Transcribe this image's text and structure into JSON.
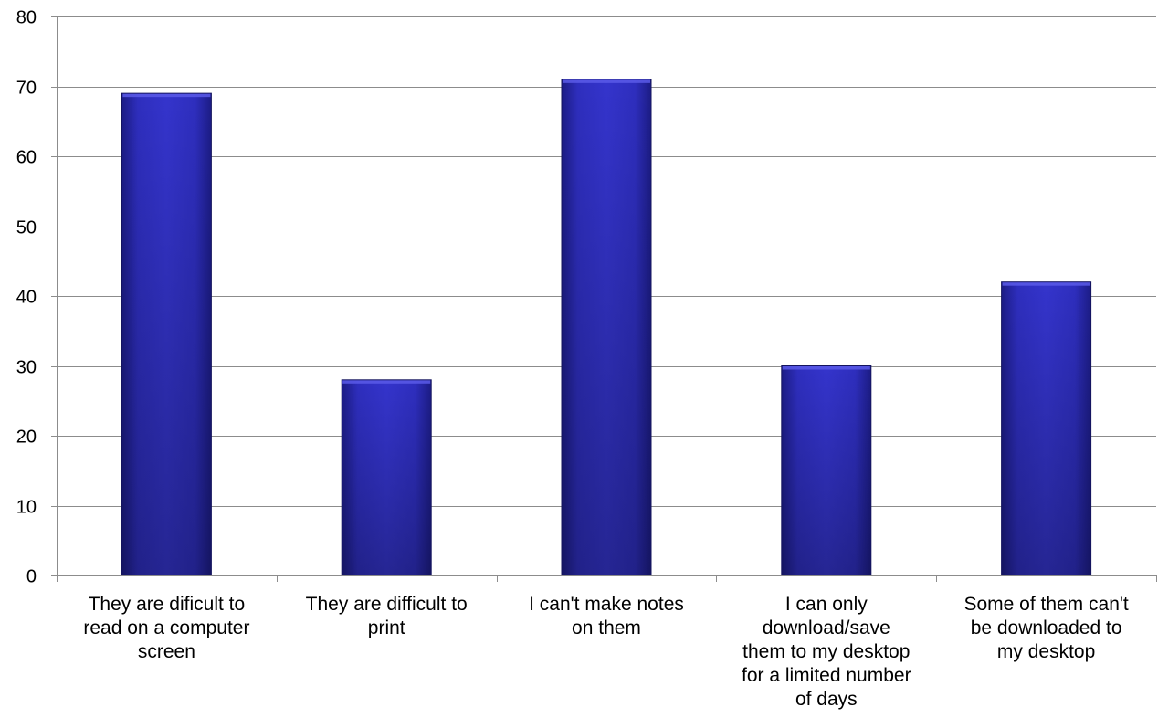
{
  "chart_data": {
    "type": "bar",
    "title": "",
    "xlabel": "",
    "ylabel": "",
    "ylim": [
      0,
      80
    ],
    "yticks": [
      0,
      10,
      20,
      30,
      40,
      50,
      60,
      70,
      80
    ],
    "grid": true,
    "legend": "none",
    "categories": [
      "They are dificult to read on a computer screen",
      "They are difficult to print",
      "I can't make notes on them",
      "I can only download/save them to my desktop for a limited number of days",
      "Some of them can't be downloaded to my desktop"
    ],
    "category_lines": [
      [
        "They are dificult to",
        "read on a computer",
        "screen"
      ],
      [
        "They are difficult to",
        "print"
      ],
      [
        "I can't make notes",
        "on them"
      ],
      [
        "I can only",
        "download/save",
        "them to my desktop",
        "for a limited number",
        "of days"
      ],
      [
        "Some of them can't",
        "be downloaded to",
        "my desktop"
      ]
    ],
    "values": [
      69,
      28,
      71,
      30,
      42
    ],
    "colors": {
      "bar_light": "#3a3ad8",
      "bar_mid": "#2a2ab5",
      "bar_dark": "#1a1a7a",
      "grid": "#8c8c8c",
      "axis": "#8c8c8c"
    }
  }
}
